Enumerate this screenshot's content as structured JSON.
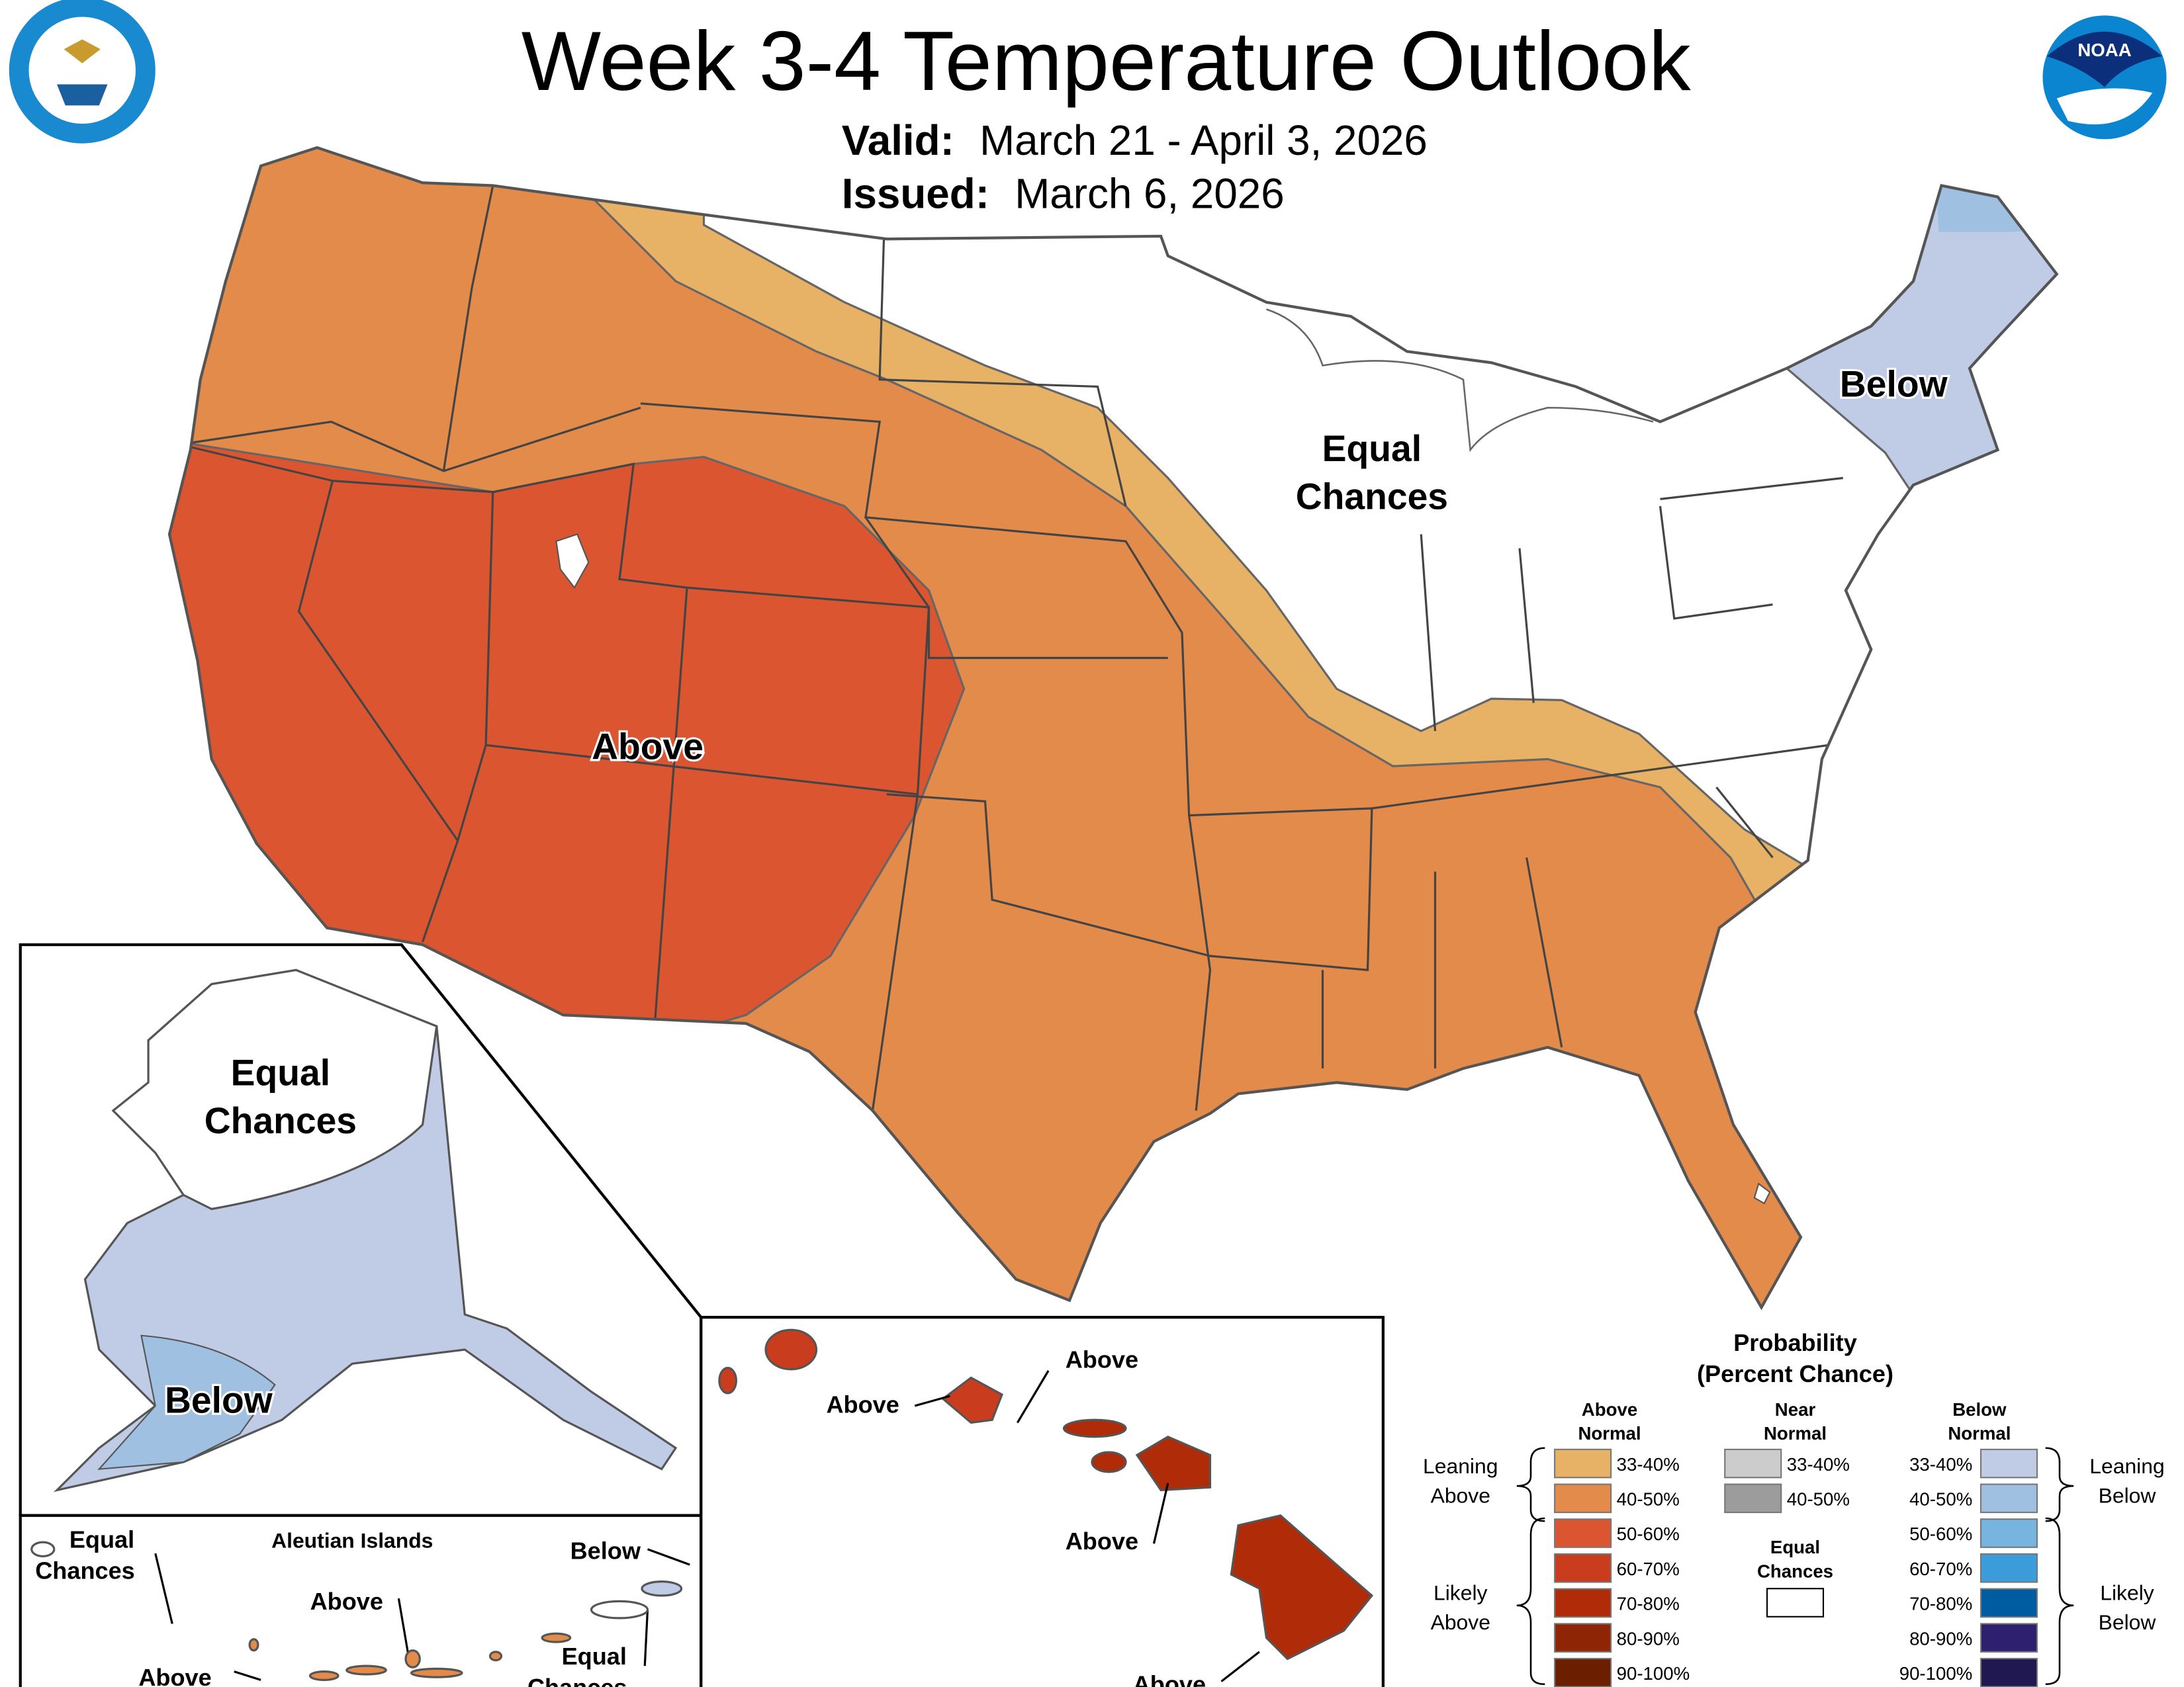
{
  "title": "Week 3-4 Temperature Outlook",
  "valid_label": "Valid:",
  "valid_value": "March 21 - April 3, 2026",
  "issued_label": "Issued:",
  "issued_value": "March 6, 2026",
  "logos": {
    "left": "department-of-commerce-seal",
    "right": "noaa-logo",
    "noaa_text": "NOAA"
  },
  "map_labels": {
    "conus_above": "Above",
    "conus_equal_1": "Equal",
    "conus_equal_2": "Chances",
    "conus_below": "Below",
    "alaska_equal_1": "Equal",
    "alaska_equal_2": "Chances",
    "alaska_below": "Below",
    "aleutian_title": "Aleutian Islands",
    "aleutian_equal_w1": "Equal",
    "aleutian_equal_w2": "Chances",
    "aleutian_above_1": "Above",
    "aleutian_above_2": "Above",
    "aleutian_below": "Below",
    "aleutian_equal_e1": "Equal",
    "aleutian_equal_e2": "Chances",
    "hawaii_above_1": "Above",
    "hawaii_above_2": "Above",
    "hawaii_above_3": "Above",
    "hawaii_above_4": "Above"
  },
  "colors": {
    "above_33_40": "#e8b266",
    "above_40_50": "#e38b4b",
    "above_50_60": "#db5630",
    "below_33_40": "#c0cce6",
    "below_40_50": "#9fc0e0",
    "border": "#555555"
  },
  "legend": {
    "title_1": "Probability",
    "title_2": "(Percent Chance)",
    "above_header_1": "Above",
    "above_header_2": "Normal",
    "near_header_1": "Near",
    "near_header_2": "Normal",
    "below_header_1": "Below",
    "below_header_2": "Normal",
    "leaning_above_1": "Leaning",
    "leaning_above_2": "Above",
    "likely_above_1": "Likely",
    "likely_above_2": "Above",
    "leaning_below_1": "Leaning",
    "leaning_below_2": "Below",
    "likely_below_1": "Likely",
    "likely_below_2": "Below",
    "equal_1": "Equal",
    "equal_2": "Chances",
    "above": [
      {
        "range": "33-40%",
        "color": "#e8b266"
      },
      {
        "range": "40-50%",
        "color": "#e38b4b"
      },
      {
        "range": "50-60%",
        "color": "#db5630"
      },
      {
        "range": "60-70%",
        "color": "#c93c1e"
      },
      {
        "range": "70-80%",
        "color": "#b02b08"
      },
      {
        "range": "80-90%",
        "color": "#8e2504"
      },
      {
        "range": "90-100%",
        "color": "#6b1e00"
      }
    ],
    "near": [
      {
        "range": "33-40%",
        "color": "#cccccc"
      },
      {
        "range": "40-50%",
        "color": "#9c9c9c"
      }
    ],
    "below": [
      {
        "range": "33-40%",
        "color": "#c0cce6"
      },
      {
        "range": "40-50%",
        "color": "#9fc0e0"
      },
      {
        "range": "50-60%",
        "color": "#78b4e0"
      },
      {
        "range": "60-70%",
        "color": "#3c9cda"
      },
      {
        "range": "70-80%",
        "color": "#005ca0"
      },
      {
        "range": "80-90%",
        "color": "#2e206e"
      },
      {
        "range": "90-100%",
        "color": "#201850"
      }
    ]
  }
}
